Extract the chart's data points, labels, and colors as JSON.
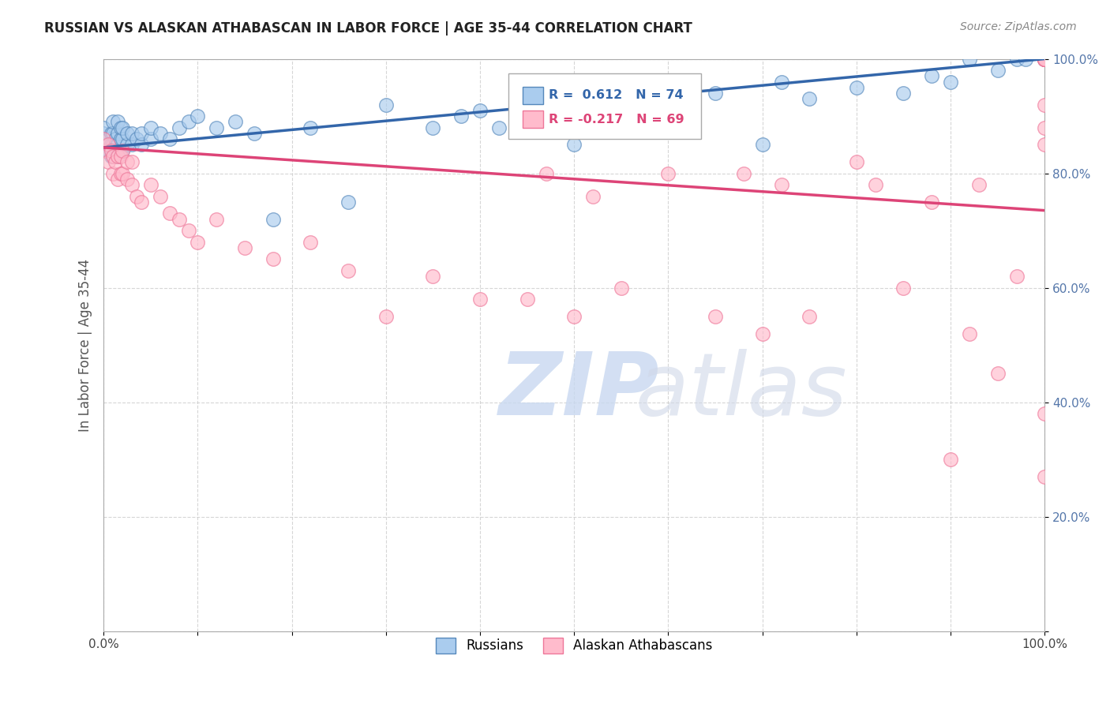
{
  "title": "RUSSIAN VS ALASKAN ATHABASCAN IN LABOR FORCE | AGE 35-44 CORRELATION CHART",
  "source": "Source: ZipAtlas.com",
  "ylabel": "In Labor Force | Age 35-44",
  "xlim": [
    0.0,
    1.0
  ],
  "ylim": [
    0.0,
    1.0
  ],
  "x_ticks": [
    0.0,
    0.1,
    0.2,
    0.3,
    0.4,
    0.5,
    0.6,
    0.7,
    0.8,
    0.9,
    1.0
  ],
  "y_ticks": [
    0.0,
    0.2,
    0.4,
    0.6,
    0.8,
    1.0
  ],
  "blue_color_face": "#AACCEE",
  "blue_color_edge": "#5588BB",
  "pink_color_face": "#FFBBCC",
  "pink_color_edge": "#EE7799",
  "blue_line_color": "#3366AA",
  "pink_line_color": "#DD4477",
  "blue_R": 0.612,
  "blue_N": 74,
  "pink_R": -0.217,
  "pink_N": 69,
  "legend_labels": [
    "Russians",
    "Alaskan Athabascans"
  ],
  "blue_line_x0": 0.0,
  "blue_line_y0": 0.845,
  "blue_line_x1": 1.0,
  "blue_line_y1": 1.0,
  "pink_line_x0": 0.0,
  "pink_line_y0": 0.845,
  "pink_line_x1": 1.0,
  "pink_line_y1": 0.735,
  "blue_scatter_x": [
    0.0,
    0.0,
    0.0,
    0.0,
    0.005,
    0.005,
    0.008,
    0.008,
    0.008,
    0.01,
    0.01,
    0.01,
    0.01,
    0.012,
    0.012,
    0.015,
    0.015,
    0.015,
    0.015,
    0.018,
    0.018,
    0.018,
    0.02,
    0.02,
    0.02,
    0.025,
    0.025,
    0.03,
    0.03,
    0.035,
    0.04,
    0.04,
    0.05,
    0.05,
    0.06,
    0.07,
    0.08,
    0.09,
    0.1,
    0.12,
    0.14,
    0.16,
    0.18,
    0.22,
    0.26,
    0.3,
    0.35,
    0.38,
    0.4,
    0.42,
    0.45,
    0.48,
    0.5,
    0.52,
    0.55,
    0.58,
    0.6,
    0.65,
    0.7,
    0.72,
    0.75,
    0.8,
    0.85,
    0.88,
    0.9,
    0.92,
    0.95,
    0.97,
    0.98,
    1.0,
    1.0,
    1.0,
    1.0,
    1.0
  ],
  "blue_scatter_y": [
    0.84,
    0.85,
    0.87,
    0.88,
    0.84,
    0.86,
    0.83,
    0.85,
    0.87,
    0.83,
    0.85,
    0.87,
    0.89,
    0.84,
    0.86,
    0.83,
    0.85,
    0.87,
    0.89,
    0.84,
    0.86,
    0.88,
    0.84,
    0.86,
    0.88,
    0.85,
    0.87,
    0.85,
    0.87,
    0.86,
    0.85,
    0.87,
    0.86,
    0.88,
    0.87,
    0.86,
    0.88,
    0.89,
    0.9,
    0.88,
    0.89,
    0.87,
    0.72,
    0.88,
    0.75,
    0.92,
    0.88,
    0.9,
    0.91,
    0.88,
    0.93,
    0.89,
    0.85,
    0.94,
    0.91,
    0.93,
    0.92,
    0.94,
    0.85,
    0.96,
    0.93,
    0.95,
    0.94,
    0.97,
    0.96,
    1.0,
    0.98,
    1.0,
    1.0,
    1.0,
    1.0,
    1.0,
    1.0,
    1.0
  ],
  "pink_scatter_x": [
    0.0,
    0.0,
    0.005,
    0.005,
    0.008,
    0.01,
    0.01,
    0.012,
    0.015,
    0.015,
    0.018,
    0.018,
    0.02,
    0.02,
    0.025,
    0.025,
    0.03,
    0.03,
    0.035,
    0.04,
    0.05,
    0.06,
    0.07,
    0.08,
    0.09,
    0.1,
    0.12,
    0.15,
    0.18,
    0.22,
    0.26,
    0.3,
    0.35,
    0.4,
    0.45,
    0.47,
    0.5,
    0.52,
    0.55,
    0.6,
    0.65,
    0.68,
    0.7,
    0.72,
    0.75,
    0.8,
    0.82,
    0.85,
    0.88,
    0.9,
    0.92,
    0.93,
    0.95,
    0.97,
    1.0,
    1.0,
    1.0,
    1.0,
    1.0,
    1.0,
    1.0,
    1.0,
    1.0,
    1.0,
    1.0,
    1.0,
    1.0,
    1.0,
    1.0
  ],
  "pink_scatter_y": [
    0.84,
    0.86,
    0.82,
    0.85,
    0.84,
    0.8,
    0.83,
    0.82,
    0.79,
    0.83,
    0.8,
    0.83,
    0.8,
    0.84,
    0.79,
    0.82,
    0.78,
    0.82,
    0.76,
    0.75,
    0.78,
    0.76,
    0.73,
    0.72,
    0.7,
    0.68,
    0.72,
    0.67,
    0.65,
    0.68,
    0.63,
    0.55,
    0.62,
    0.58,
    0.58,
    0.8,
    0.55,
    0.76,
    0.6,
    0.8,
    0.55,
    0.8,
    0.52,
    0.78,
    0.55,
    0.82,
    0.78,
    0.6,
    0.75,
    0.3,
    0.52,
    0.78,
    0.45,
    0.62,
    1.0,
    1.0,
    1.0,
    1.0,
    1.0,
    1.0,
    1.0,
    1.0,
    1.0,
    1.0,
    0.92,
    0.88,
    0.85,
    0.38,
    0.27
  ]
}
